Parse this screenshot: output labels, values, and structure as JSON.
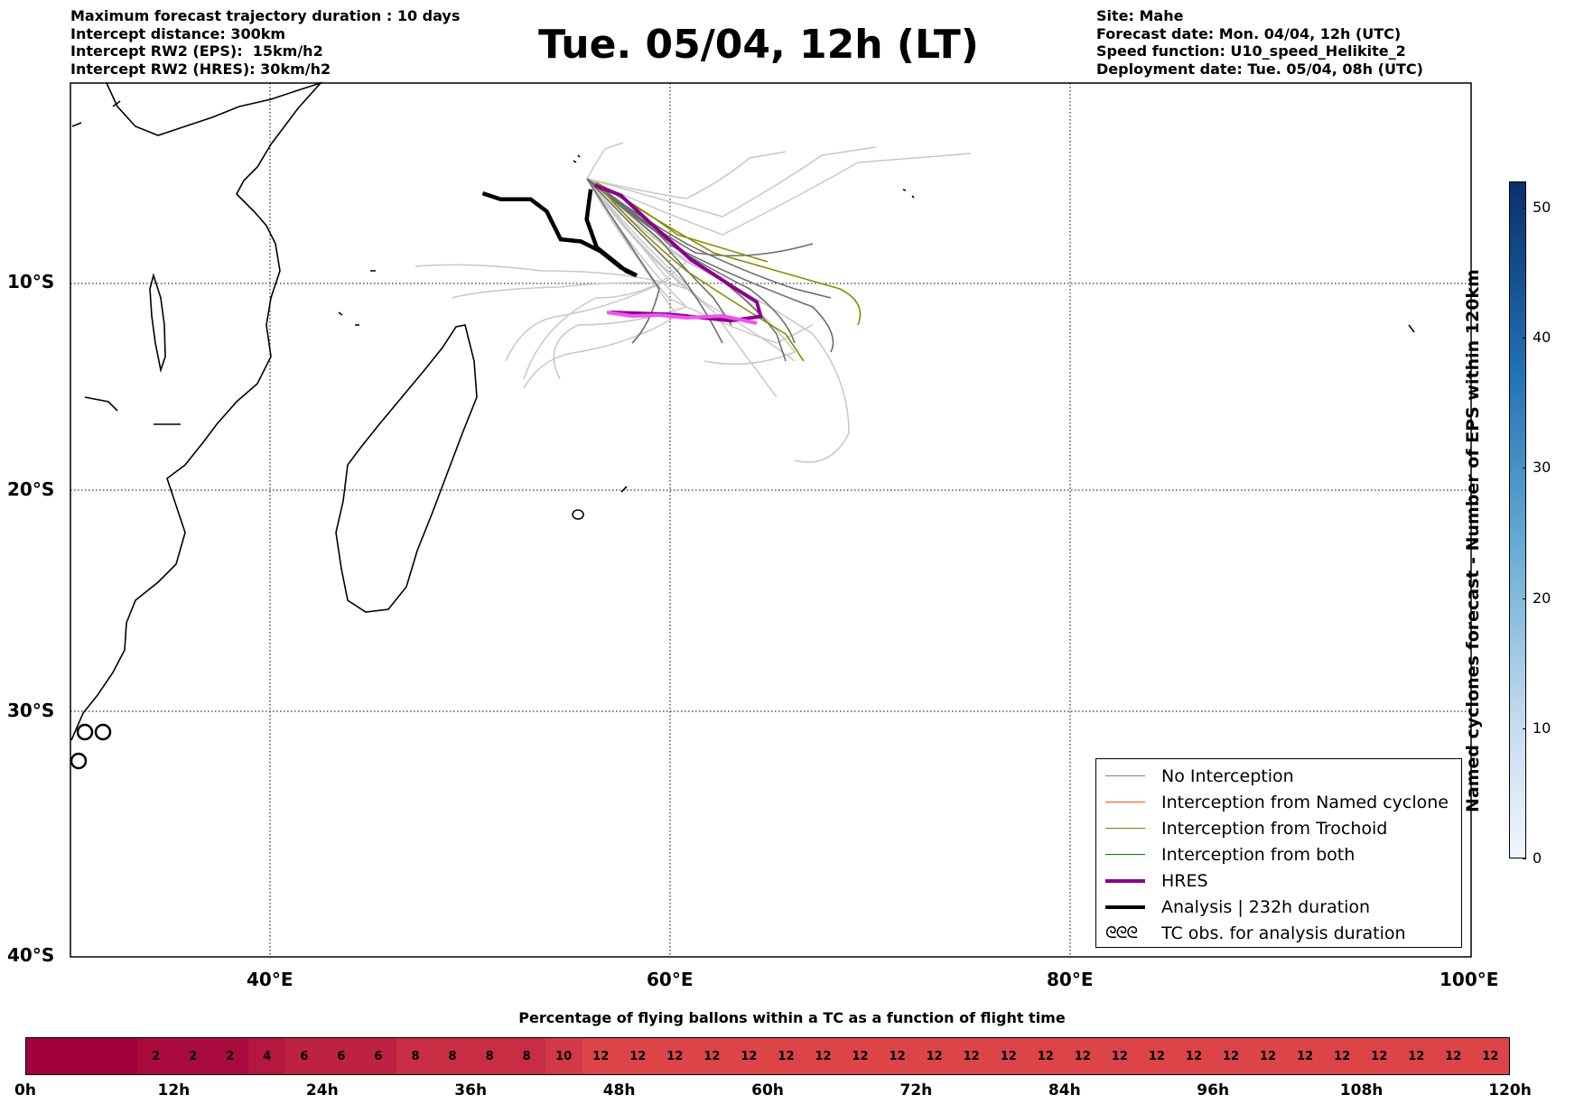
{
  "header": {
    "left_lines": [
      "Maximum forecast trajectory duration : 10 days",
      "Intercept distance: 300km",
      "Intercept RW2 (EPS):  15km/h2",
      "Intercept RW2 (HRES): 30km/h2"
    ],
    "title": "Tue. 05/04, 12h (LT)",
    "right_lines": [
      "Site: Mahe",
      "Forecast date: Mon. 04/04, 12h (UTC)",
      "Speed function: U10_speed_Helikite_2",
      "Deployment date: Tue. 05/04, 08h (UTC)"
    ]
  },
  "map": {
    "lat_labels": [
      "10°S",
      "20°S",
      "30°S",
      "40°S"
    ],
    "lon_labels": [
      "40°E",
      "60°E",
      "80°E",
      "100°E"
    ],
    "lon_range": [
      30,
      100
    ],
    "lat_range": [
      -40,
      0
    ]
  },
  "legend": {
    "items": [
      {
        "label": "No Interception",
        "color": "#808080"
      },
      {
        "label": "Interception from Named cyclone",
        "color": "#ff5000"
      },
      {
        "label": "Interception from Trochoid",
        "color": "#808000"
      },
      {
        "label": "Interception from both",
        "color": "#008000"
      },
      {
        "label": "HRES",
        "color": "#8b008b"
      },
      {
        "label": "Analysis | 232h duration",
        "color": "#000000"
      }
    ],
    "tc_symbol": "ᘓᘓᘓ",
    "tc_label": "TC obs. for analysis duration"
  },
  "colorbar_vertical": {
    "label": "Named cyclones forecast - Number of EPS within 120km",
    "ticks": [
      "0",
      "10",
      "20",
      "30",
      "40",
      "50"
    ],
    "max": 52
  },
  "colorbar_horizontal": {
    "title": "Percentage of flying ballons within a TC as a function of flight time",
    "cells": [
      "",
      "",
      "",
      "2",
      "2",
      "2",
      "4",
      "6",
      "6",
      "6",
      "8",
      "8",
      "8",
      "8",
      "10",
      "12",
      "12",
      "12",
      "12",
      "12",
      "12",
      "12",
      "12",
      "12",
      "12",
      "12",
      "12",
      "12",
      "12",
      "12",
      "12",
      "12",
      "12",
      "12",
      "12",
      "12",
      "12",
      "12",
      "12",
      "12"
    ],
    "ticks": [
      "0h",
      "12h",
      "24h",
      "36h",
      "48h",
      "60h",
      "72h",
      "84h",
      "96h",
      "108h",
      "120h"
    ]
  },
  "chart_data": {
    "type": "line",
    "title": "Tue. 05/04, 12h (LT)",
    "xlabel": "",
    "ylabel": "",
    "series": [
      {
        "name": "HRES",
        "lon": [
          56.2,
          57.5,
          59,
          61,
          63,
          64.3,
          64.5,
          63,
          60,
          57
        ],
        "lat": [
          -5.1,
          -5.6,
          -7,
          -8.8,
          -10.1,
          -10.9,
          -11.6,
          -11.8,
          -11.5,
          -11.4
        ]
      },
      {
        "name": "Analysis | 232h duration",
        "lon": [
          50.6,
          51.5,
          53,
          53.8,
          54.5,
          55.5,
          56.5,
          57.5,
          58.3,
          57.8,
          56.3,
          55.8,
          56
        ],
        "lat": [
          -5.5,
          -5.8,
          -5.8,
          -6.4,
          -7.8,
          -7.9,
          -8.4,
          -9.2,
          -9.6,
          -9.4,
          -8.2,
          -6.8,
          -5.3
        ]
      }
    ]
  }
}
